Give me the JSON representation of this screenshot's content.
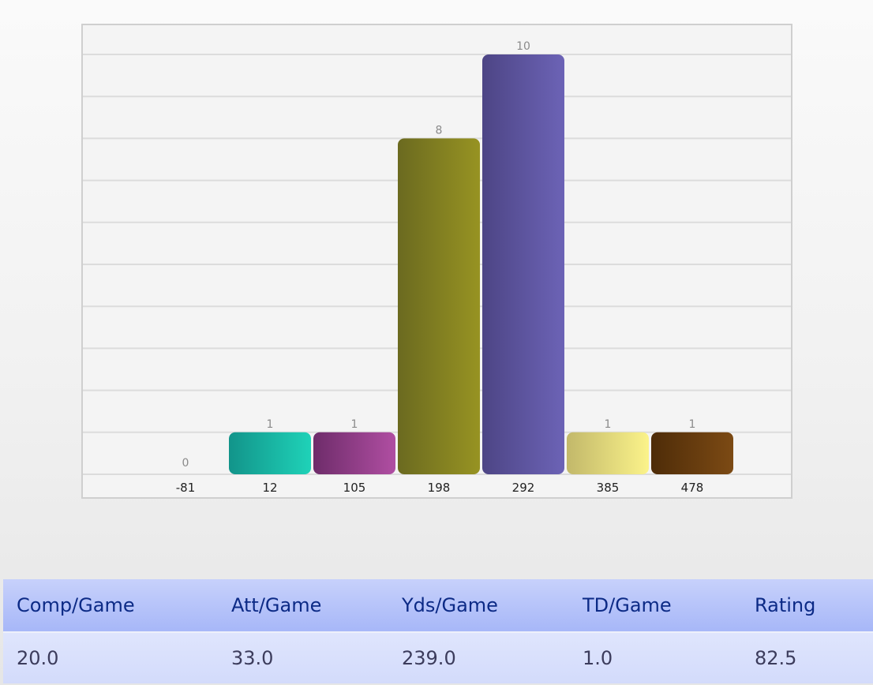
{
  "chart_data": {
    "type": "bar",
    "title": "",
    "xlabel": "",
    "ylabel": "",
    "categories": [
      "-81",
      "12",
      "105",
      "198",
      "292",
      "385",
      "478"
    ],
    "values": [
      0,
      1,
      1,
      8,
      10,
      1,
      1
    ],
    "ylim": [
      0,
      10.5
    ],
    "grid": true,
    "legend": "none",
    "colors": [
      [
        "#9a9a9a",
        "#bbbbbb"
      ],
      [
        "#12948a",
        "#1fd2b8"
      ],
      [
        "#6e2c6a",
        "#b04ea2"
      ],
      [
        "#6b6a20",
        "#979322"
      ],
      [
        "#4d4585",
        "#6c63b6"
      ],
      [
        "#c2b86a",
        "#fbf38a"
      ],
      [
        "#4e2c08",
        "#7c4a14"
      ]
    ]
  },
  "stats": {
    "headers": [
      "Comp/Game",
      "Att/Game",
      "Yds/Game",
      "TD/Game",
      "Rating"
    ],
    "values": [
      "20.0",
      "33.0",
      "239.0",
      "1.0",
      "82.5"
    ]
  }
}
